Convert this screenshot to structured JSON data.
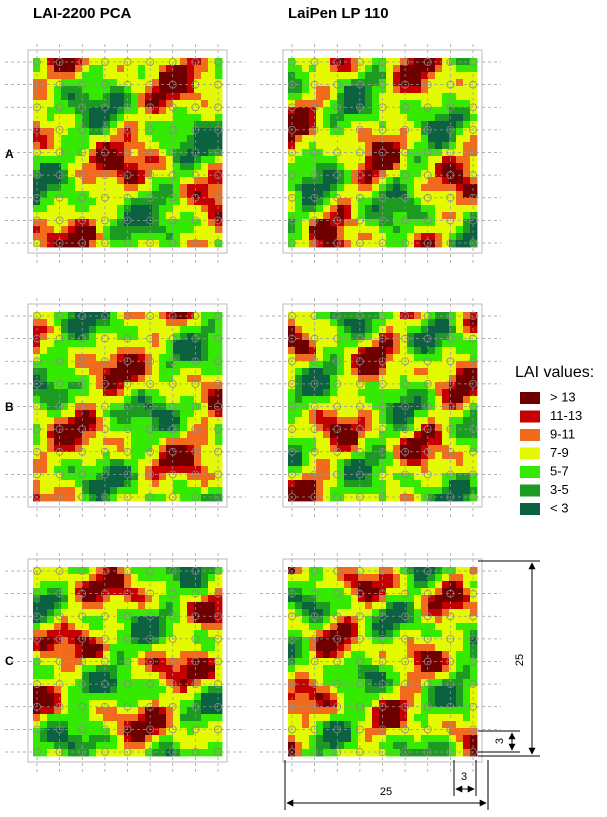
{
  "columns": [
    "LAI-2200 PCA",
    "LaiPen LP 110"
  ],
  "rows": [
    "A",
    "B",
    "C"
  ],
  "legend": {
    "title": "LAI values:",
    "items": [
      {
        "label": "> 13",
        "color": "#6e0000"
      },
      {
        "label": "11-13",
        "color": "#c40000"
      },
      {
        "label": "9-11",
        "color": "#f26a1b"
      },
      {
        "label": "7-9",
        "color": "#e4fa00"
      },
      {
        "label": "5-7",
        "color": "#33ea00"
      },
      {
        "label": "3-5",
        "color": "#1c9a22"
      },
      {
        "label": "< 3",
        "color": "#0b6140"
      }
    ]
  },
  "dimensions": {
    "height": "25",
    "cell_height": "3",
    "width": "25",
    "cell_width": "3"
  }
}
